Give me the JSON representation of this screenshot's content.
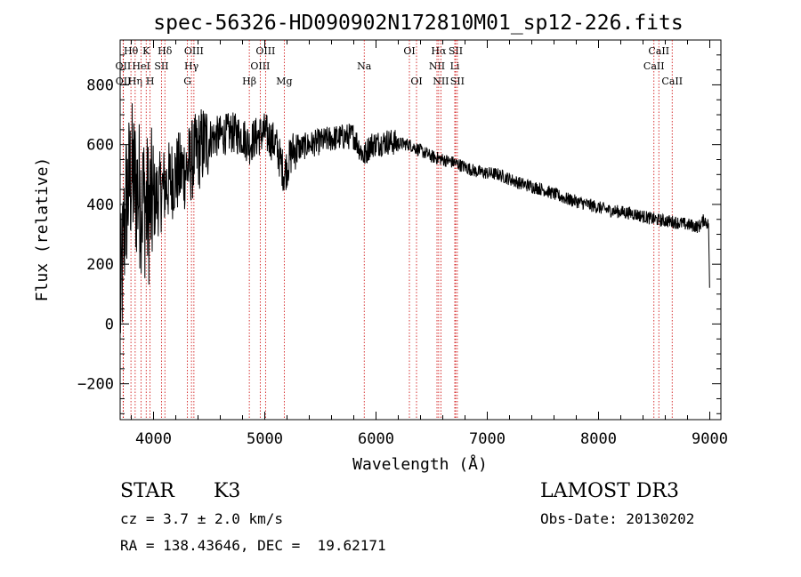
{
  "chart_data": {
    "type": "line",
    "title": "spec-56326-HD090902N172810M01_sp12-226.fits",
    "xlabel": "Wavelength (Å)",
    "ylabel": "Flux (relative)",
    "xlim": [
      3700,
      9100
    ],
    "ylim": [
      -320,
      950
    ],
    "x_ticks": [
      4000,
      5000,
      6000,
      7000,
      8000,
      9000
    ],
    "x_tick_labels": [
      "4000",
      "5000",
      "6000",
      "7000",
      "8000",
      "9000"
    ],
    "y_ticks": [
      -200,
      0,
      200,
      400,
      600,
      800
    ],
    "y_tick_labels": [
      "−200",
      "0",
      "200",
      "400",
      "600",
      "800"
    ],
    "line_color": "#000000",
    "marker_color": "#cc0000",
    "spectrum_anchors": {
      "x": [
        3700,
        3750,
        3800,
        3850,
        3900,
        3950,
        4000,
        4100,
        4200,
        4300,
        4400,
        4500,
        4600,
        4700,
        4800,
        4861,
        4900,
        5000,
        5100,
        5175,
        5250,
        5400,
        5600,
        5800,
        5890,
        5950,
        6100,
        6300,
        6500,
        6700,
        6900,
        7100,
        7300,
        7500,
        7700,
        7900,
        8100,
        8300,
        8500,
        8700,
        8900,
        8950,
        8990,
        9000
      ],
      "y": [
        50,
        400,
        500,
        450,
        420,
        380,
        410,
        460,
        500,
        520,
        580,
        620,
        630,
        640,
        630,
        600,
        620,
        640,
        600,
        500,
        580,
        600,
        620,
        630,
        560,
        600,
        610,
        600,
        560,
        540,
        510,
        500,
        470,
        450,
        420,
        400,
        380,
        370,
        350,
        340,
        325,
        350,
        330,
        50
      ]
    },
    "line_markers": [
      {
        "label": "Hθ",
        "x": 3797,
        "row": 1
      },
      {
        "label": "OII",
        "x": 3727,
        "row": 2
      },
      {
        "label": "OII",
        "x": 3729,
        "row": 3
      },
      {
        "label": "Hη",
        "x": 3835,
        "row": 3
      },
      {
        "label": "HeI",
        "x": 3889,
        "row": 2
      },
      {
        "label": "K",
        "x": 3934,
        "row": 1
      },
      {
        "label": "H",
        "x": 3969,
        "row": 3
      },
      {
        "label": "SII",
        "x": 4072,
        "row": 2
      },
      {
        "label": "Hδ",
        "x": 4102,
        "row": 1
      },
      {
        "label": "OIII",
        "x": 4363,
        "row": 1
      },
      {
        "label": "Hγ",
        "x": 4341,
        "row": 2
      },
      {
        "label": "G",
        "x": 4305,
        "row": 3
      },
      {
        "label": "Hβ",
        "x": 4861,
        "row": 3
      },
      {
        "label": "OIII",
        "x": 5007,
        "row": 1
      },
      {
        "label": "OIII",
        "x": 4959,
        "row": 2
      },
      {
        "label": "Mg",
        "x": 5175,
        "row": 3
      },
      {
        "label": "Na",
        "x": 5894,
        "row": 2
      },
      {
        "label": "OI",
        "x": 6300,
        "row": 1
      },
      {
        "label": "OI",
        "x": 6364,
        "row": 3
      },
      {
        "label": "Hα",
        "x": 6563,
        "row": 1
      },
      {
        "label": "NII",
        "x": 6548,
        "row": 2
      },
      {
        "label": "NII",
        "x": 6583,
        "row": 3
      },
      {
        "label": "SII",
        "x": 6716,
        "row": 1
      },
      {
        "label": "Li",
        "x": 6708,
        "row": 2
      },
      {
        "label": "SII",
        "x": 6731,
        "row": 3
      },
      {
        "label": "CaII",
        "x": 8542,
        "row": 1
      },
      {
        "label": "CaII",
        "x": 8498,
        "row": 2
      },
      {
        "label": "CaII",
        "x": 8662,
        "row": 3
      }
    ]
  },
  "info": {
    "class_label": "STAR",
    "subclass": "K3",
    "survey": "LAMOST DR3",
    "cz": "cz = 3.7 ± 2.0 km/s",
    "obs_date": "Obs-Date: 20130202",
    "coords": "RA = 138.43646, DEC =  19.62171"
  }
}
